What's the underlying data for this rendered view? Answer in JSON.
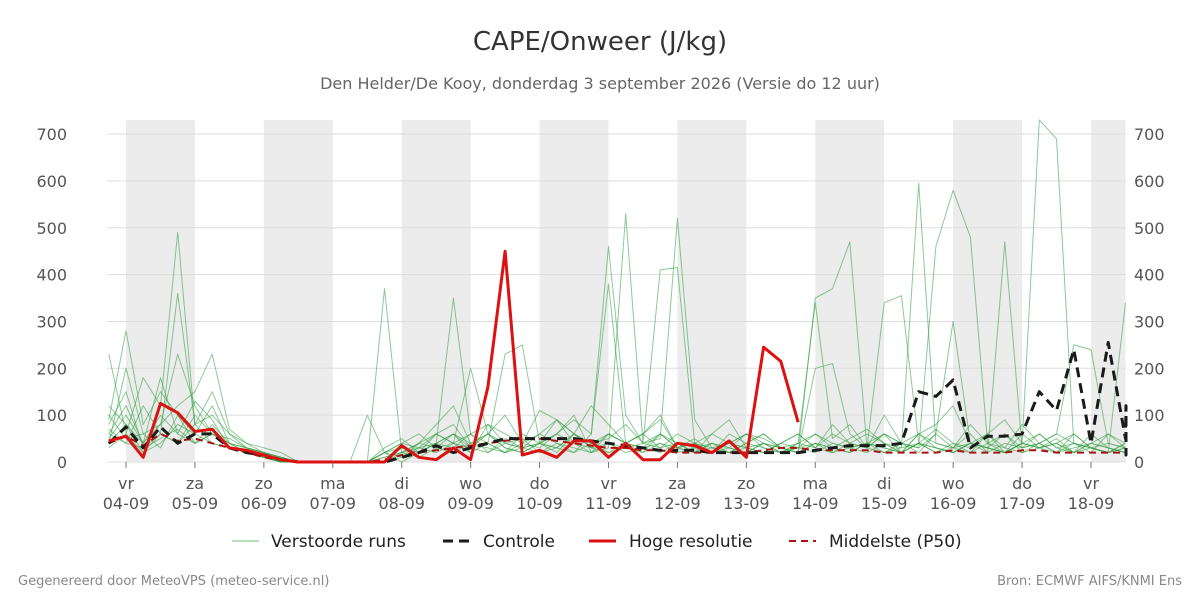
{
  "title": "CAPE/Onweer (J/kg)",
  "subtitle": "Den Helder/De Kooy, donderdag  3 september 2026 (Versie do 12 uur)",
  "footer_left": "Gegenereerd door MeteoVPS (meteo-service.nl)",
  "footer_right": "Bron: ECMWF AIFS/KNMI Ens",
  "colors": {
    "ensemble": "#2e9e3e",
    "controle": "#1a1a1a",
    "hoge_resolutie": "#dd1111",
    "middelste": "#aa1111",
    "weekend_band": "#ececec",
    "grid": "#dddddd"
  },
  "chart_data": {
    "type": "line",
    "title": "CAPE/Onweer (J/kg)",
    "xlabel": "",
    "ylabel": "",
    "ylim": [
      0,
      730
    ],
    "y_ticks": [
      0,
      100,
      200,
      300,
      400,
      500,
      600,
      700
    ],
    "x_range_days": [
      -0.25,
      14
    ],
    "x_ticks": [
      {
        "day": 0,
        "dow": "vr",
        "date": "04-09"
      },
      {
        "day": 1,
        "dow": "za",
        "date": "05-09"
      },
      {
        "day": 2,
        "dow": "zo",
        "date": "06-09"
      },
      {
        "day": 3,
        "dow": "ma",
        "date": "07-09"
      },
      {
        "day": 4,
        "dow": "di",
        "date": "08-09"
      },
      {
        "day": 5,
        "dow": "wo",
        "date": "09-09"
      },
      {
        "day": 6,
        "dow": "do",
        "date": "10-09"
      },
      {
        "day": 7,
        "dow": "vr",
        "date": "11-09"
      },
      {
        "day": 8,
        "dow": "za",
        "date": "12-09"
      },
      {
        "day": 9,
        "dow": "zo",
        "date": "13-09"
      },
      {
        "day": 10,
        "dow": "ma",
        "date": "14-09"
      },
      {
        "day": 11,
        "dow": "di",
        "date": "15-09"
      },
      {
        "day": 12,
        "dow": "wo",
        "date": "16-09"
      },
      {
        "day": 13,
        "dow": "do",
        "date": "17-09"
      },
      {
        "day": 14,
        "dow": "vr",
        "date": "18-09"
      }
    ],
    "shaded_bands_days": [
      [
        0,
        1
      ],
      [
        2,
        3
      ],
      [
        4,
        5
      ],
      [
        6,
        7
      ],
      [
        8,
        9
      ],
      [
        10,
        11
      ],
      [
        12,
        13
      ],
      [
        14,
        14.5
      ]
    ],
    "legend": [
      {
        "name": "Verstoorde runs",
        "style": "thin-solid",
        "color": "#2e9e3e"
      },
      {
        "name": "Controle",
        "style": "dashed",
        "color": "#1a1a1a"
      },
      {
        "name": "Hoge resolutie",
        "style": "solid",
        "color": "#dd1111"
      },
      {
        "name": "Middelste (P50)",
        "style": "dashed",
        "color": "#aa1111"
      }
    ],
    "ensemble_step_days": 0.25,
    "ensemble_start_day": -0.25,
    "ensemble_members": [
      [
        90,
        280,
        80,
        150,
        100,
        60,
        120,
        40,
        30,
        20,
        10,
        0,
        0,
        0,
        0,
        0,
        0,
        10,
        30,
        60,
        40,
        20,
        80,
        60,
        40,
        110,
        90,
        60,
        120,
        80,
        40,
        60,
        90,
        30,
        50,
        20,
        40,
        60,
        30,
        20,
        40,
        60,
        30,
        50,
        70,
        40,
        20,
        60,
        80,
        120,
        40,
        60,
        30,
        80,
        40,
        20,
        60,
        30,
        20,
        40
      ],
      [
        230,
        60,
        180,
        120,
        490,
        80,
        100,
        60,
        40,
        20,
        0,
        0,
        0,
        0,
        0,
        100,
        20,
        0,
        20,
        40,
        350,
        60,
        20,
        50,
        30,
        40,
        90,
        60,
        30,
        20,
        40,
        60,
        100,
        30,
        40,
        60,
        90,
        30,
        20,
        40,
        60,
        30,
        80,
        40,
        30,
        60,
        20,
        40,
        70,
        40,
        20,
        60,
        90,
        40,
        30,
        50,
        20,
        40,
        60,
        30
      ],
      [
        60,
        120,
        40,
        180,
        60,
        130,
        90,
        30,
        20,
        10,
        0,
        0,
        0,
        0,
        0,
        0,
        370,
        20,
        10,
        30,
        60,
        20,
        40,
        230,
        250,
        40,
        60,
        100,
        20,
        30,
        530,
        40,
        410,
        415,
        40,
        20,
        30,
        60,
        50,
        30,
        40,
        340,
        50,
        80,
        30,
        60,
        40,
        20,
        60,
        30,
        80,
        40,
        20,
        60,
        30,
        40,
        20,
        60,
        30,
        20
      ],
      [
        40,
        200,
        60,
        80,
        230,
        120,
        60,
        40,
        20,
        10,
        0,
        0,
        0,
        0,
        0,
        0,
        20,
        10,
        40,
        80,
        120,
        40,
        60,
        30,
        20,
        40,
        60,
        90,
        60,
        460,
        100,
        40,
        50,
        520,
        90,
        30,
        20,
        40,
        60,
        30,
        20,
        200,
        210,
        60,
        30,
        20,
        40,
        60,
        40,
        30,
        60,
        20,
        40,
        30,
        60,
        30,
        20,
        40,
        30,
        20
      ],
      [
        80,
        150,
        30,
        60,
        360,
        80,
        150,
        60,
        30,
        20,
        10,
        0,
        0,
        0,
        0,
        0,
        30,
        50,
        20,
        60,
        40,
        200,
        60,
        100,
        40,
        30,
        60,
        40,
        20,
        60,
        40,
        30,
        60,
        40,
        20,
        30,
        40,
        60,
        40,
        20,
        30,
        60,
        40,
        30,
        20,
        40,
        20,
        60,
        30,
        20,
        40,
        30,
        60,
        20,
        30,
        40,
        20,
        30,
        40,
        30
      ],
      [
        50,
        100,
        40,
        80,
        120,
        150,
        230,
        70,
        40,
        30,
        20,
        0,
        0,
        0,
        0,
        0,
        0,
        20,
        40,
        60,
        80,
        30,
        60,
        40,
        50,
        20,
        30,
        60,
        40,
        50,
        80,
        40,
        30,
        60,
        40,
        30,
        20,
        40,
        60,
        30,
        20,
        350,
        370,
        470,
        30,
        340,
        355,
        40,
        20,
        40,
        30,
        60,
        20,
        40,
        30,
        20,
        40,
        30,
        20,
        30
      ],
      [
        30,
        60,
        20,
        40,
        80,
        60,
        40,
        30,
        20,
        10,
        0,
        0,
        0,
        0,
        0,
        0,
        10,
        20,
        30,
        40,
        60,
        40,
        30,
        20,
        40,
        60,
        90,
        40,
        30,
        60,
        40,
        20,
        60,
        30,
        40,
        20,
        60,
        40,
        30,
        20,
        40,
        30,
        60,
        40,
        30,
        100,
        40,
        30,
        60,
        300,
        40,
        30,
        20,
        40,
        60,
        30,
        40,
        20,
        60,
        40
      ],
      [
        100,
        50,
        60,
        30,
        100,
        40,
        60,
        50,
        30,
        20,
        10,
        0,
        0,
        0,
        0,
        0,
        20,
        40,
        60,
        30,
        40,
        60,
        80,
        40,
        30,
        60,
        40,
        20,
        60,
        380,
        40,
        60,
        30,
        40,
        20,
        60,
        40,
        30,
        20,
        40,
        60,
        30,
        20,
        40,
        60,
        40,
        30,
        595,
        40,
        30,
        20,
        40,
        60,
        30,
        40,
        20,
        30,
        40,
        30,
        20
      ],
      [
        120,
        80,
        40,
        100,
        60,
        40,
        80,
        40,
        30,
        20,
        10,
        0,
        0,
        0,
        0,
        0,
        0,
        30,
        20,
        40,
        60,
        30,
        40,
        20,
        60,
        40,
        30,
        20,
        40,
        60,
        40,
        30,
        20,
        40,
        30,
        20,
        40,
        30,
        20,
        40,
        30,
        20,
        40,
        30,
        40,
        60,
        40,
        30,
        460,
        580,
        480,
        40,
        30,
        20,
        40,
        60,
        40,
        30,
        20,
        30
      ],
      [
        70,
        40,
        120,
        60,
        40,
        80,
        40,
        30,
        20,
        10,
        0,
        0,
        0,
        0,
        0,
        0,
        10,
        20,
        40,
        30,
        20,
        40,
        60,
        30,
        20,
        40,
        30,
        60,
        40,
        20,
        30,
        40,
        60,
        30,
        20,
        40,
        30,
        20,
        40,
        30,
        20,
        40,
        30,
        20,
        40,
        30,
        20,
        40,
        30,
        20,
        40,
        30,
        20,
        40,
        730,
        690,
        40,
        30,
        20,
        40
      ],
      [
        40,
        80,
        20,
        60,
        40,
        100,
        60,
        40,
        20,
        10,
        0,
        0,
        0,
        0,
        0,
        0,
        20,
        30,
        20,
        40,
        30,
        60,
        40,
        20,
        30,
        40,
        20,
        60,
        30,
        40,
        20,
        30,
        40,
        20,
        30,
        40,
        20,
        30,
        40,
        20,
        30,
        40,
        20,
        30,
        40,
        20,
        30,
        40,
        20,
        30,
        40,
        20,
        470,
        30,
        40,
        60,
        250,
        240,
        40,
        30
      ],
      [
        60,
        40,
        30,
        50,
        70,
        40,
        60,
        30,
        20,
        10,
        0,
        0,
        0,
        0,
        0,
        0,
        20,
        40,
        30,
        20,
        40,
        30,
        20,
        40,
        30,
        20,
        40,
        30,
        20,
        40,
        30,
        20,
        40,
        30,
        20,
        40,
        30,
        20,
        40,
        30,
        20,
        40,
        30,
        20,
        40,
        30,
        20,
        40,
        30,
        20,
        40,
        30,
        20,
        40,
        30,
        40,
        60,
        30,
        20,
        340
      ]
    ],
    "controle": {
      "step_days": 0.25,
      "start_day": -0.25,
      "values": [
        40,
        75,
        30,
        75,
        40,
        60,
        60,
        30,
        20,
        15,
        5,
        0,
        0,
        0,
        0,
        0,
        0,
        10,
        20,
        35,
        20,
        30,
        40,
        50,
        50,
        50,
        50,
        50,
        45,
        40,
        35,
        30,
        25,
        25,
        25,
        20,
        20,
        20,
        20,
        20,
        20,
        25,
        30,
        35,
        35,
        35,
        40,
        150,
        140,
        175,
        30,
        55,
        55,
        60,
        150,
        110,
        240,
        40,
        255,
        50,
        120,
        40,
        40,
        40,
        15,
        20,
        15
      ]
    },
    "hoge_resolutie": {
      "step_days": 0.25,
      "start_day": -0.25,
      "values": [
        45,
        55,
        10,
        125,
        105,
        65,
        70,
        30,
        25,
        15,
        5,
        0,
        0,
        0,
        0,
        0,
        0,
        35,
        10,
        5,
        30,
        5,
        160,
        450,
        15,
        25,
        10,
        45,
        45,
        10,
        40,
        5,
        5,
        40,
        35,
        20,
        45,
        10,
        245,
        215,
        85
      ]
    },
    "middelste": {
      "step_days": 0.25,
      "start_day": -0.25,
      "values": [
        40,
        55,
        35,
        60,
        45,
        50,
        40,
        30,
        20,
        10,
        5,
        0,
        0,
        0,
        0,
        0,
        5,
        15,
        20,
        25,
        30,
        35,
        40,
        45,
        50,
        50,
        45,
        40,
        35,
        30,
        30,
        25,
        25,
        20,
        20,
        20,
        20,
        20,
        25,
        30,
        30,
        25,
        25,
        25,
        25,
        20,
        20,
        20,
        20,
        25,
        20,
        20,
        20,
        25,
        25,
        20,
        20,
        20,
        20,
        20,
        20,
        20,
        15,
        15,
        15,
        15,
        15
      ]
    }
  }
}
